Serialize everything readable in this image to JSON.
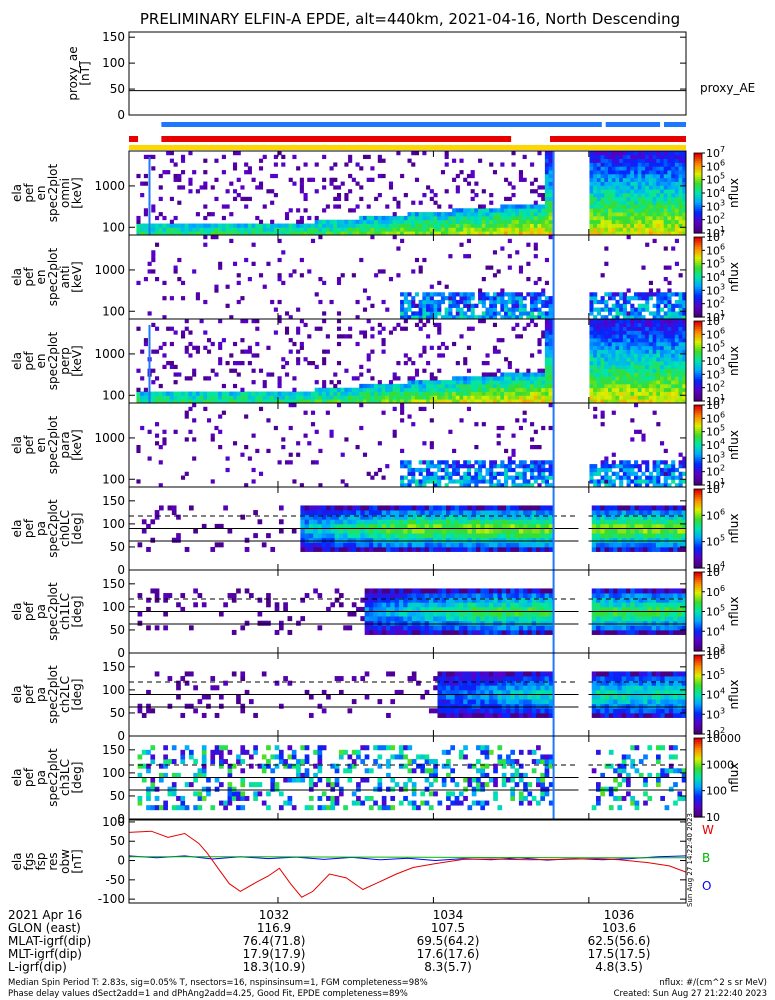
{
  "title": "PRELIMINARY ELFIN-A EPDE, alt=440km, 2021-04-16, North Descending",
  "colors": {
    "ae_line": "#000000",
    "bar_blue": "#1e78ff",
    "bar_red": "#e60000",
    "bar_yellow": "#ffd700",
    "fgs_red": "#e60000",
    "fgs_green": "#00b400",
    "fgs_blue": "#0000ff"
  },
  "chart_data": [
    {
      "id": "proxy_ae",
      "type": "line",
      "ylabel": [
        "proxy_ae",
        "[nT]"
      ],
      "ylim": [
        0,
        160
      ],
      "yticks": [
        "0",
        "50",
        "100",
        "150"
      ],
      "legend": "proxy_AE",
      "series": [
        {
          "name": "proxy_AE",
          "value": 47
        }
      ]
    },
    {
      "id": "status_bars",
      "type": "bar",
      "rows": [
        {
          "color": "blue",
          "segments": [
            [
              "10:30:30",
              "10:36:10"
            ],
            [
              "10:36:13",
              "10:36:55"
            ],
            [
              "10:36:58",
              "10:37:15"
            ]
          ]
        },
        {
          "color": "red",
          "segments": [
            [
              "10:30:05",
              "10:30:12"
            ],
            [
              "10:30:30",
              "10:35:00"
            ],
            [
              "10:35:30",
              "10:37:15"
            ]
          ]
        },
        {
          "color": "yellow",
          "segments": [
            [
              "10:30:05",
              "10:37:15"
            ]
          ]
        }
      ]
    },
    {
      "id": "ela_pef_en_spec2plot_omni",
      "type": "heatmap",
      "ylabel": [
        "ela",
        "pef",
        "en",
        "spec2plot",
        "omni",
        "[keV]"
      ],
      "yscale": "log",
      "ylim": [
        65,
        7000
      ],
      "yticks": [
        "100",
        "1000"
      ],
      "zlabel": "nflux",
      "zticks": [
        "10^1",
        "10^2",
        "10^3",
        "10^4",
        "10^5",
        "10^6",
        "10^7"
      ]
    },
    {
      "id": "ela_pef_en_spec2plot_anti",
      "type": "heatmap",
      "ylabel": [
        "ela",
        "pef",
        "en",
        "spec2plot",
        "anti",
        "[keV]"
      ],
      "yscale": "log",
      "ylim": [
        65,
        7000
      ],
      "yticks": [
        "100",
        "1000"
      ],
      "zlabel": "nflux",
      "zticks": [
        "10^1",
        "10^2",
        "10^3",
        "10^4",
        "10^5",
        "10^6",
        "10^7"
      ]
    },
    {
      "id": "ela_pef_en_spec2plot_perp",
      "type": "heatmap",
      "ylabel": [
        "ela",
        "pef",
        "en",
        "spec2plot",
        "perp",
        "[keV]"
      ],
      "yscale": "log",
      "ylim": [
        65,
        7000
      ],
      "yticks": [
        "100",
        "1000"
      ],
      "zlabel": "nflux",
      "zticks": [
        "10^1",
        "10^2",
        "10^3",
        "10^4",
        "10^5",
        "10^6",
        "10^7"
      ]
    },
    {
      "id": "ela_pef_en_spec2plot_para",
      "type": "heatmap",
      "ylabel": [
        "ela",
        "pef",
        "en",
        "spec2plot",
        "para",
        "[keV]"
      ],
      "yscale": "log",
      "ylim": [
        65,
        7000
      ],
      "yticks": [
        "100",
        "1000"
      ],
      "zlabel": "nflux",
      "zticks": [
        "10^1",
        "10^2",
        "10^3",
        "10^4",
        "10^5",
        "10^6",
        "10^7"
      ]
    },
    {
      "id": "ela_pef_pa_spec2plot_ch0LC",
      "type": "heatmap",
      "ylabel": [
        "ela",
        "pef",
        "pa",
        "spec2plot",
        "ch0LC",
        "[deg]"
      ],
      "ylim": [
        0,
        180
      ],
      "yticks": [
        "0",
        "50",
        "100",
        "150"
      ],
      "zlabel": "nflux",
      "zticks": [
        "10^4",
        "10^5",
        "10^6",
        "10^7"
      ]
    },
    {
      "id": "ela_pef_pa_spec2plot_ch1LC",
      "type": "heatmap",
      "ylabel": [
        "ela",
        "pef",
        "pa",
        "spec2plot",
        "ch1LC",
        "[deg]"
      ],
      "ylim": [
        0,
        180
      ],
      "yticks": [
        "0",
        "50",
        "100",
        "150"
      ],
      "zlabel": "nflux",
      "zticks": [
        "10^3",
        "10^4",
        "10^5",
        "10^6",
        "10^7"
      ]
    },
    {
      "id": "ela_pef_pa_spec2plot_ch2LC",
      "type": "heatmap",
      "ylabel": [
        "ela",
        "pef",
        "pa",
        "spec2plot",
        "ch2LC",
        "[deg]"
      ],
      "ylim": [
        0,
        180
      ],
      "yticks": [
        "0",
        "50",
        "100",
        "150"
      ],
      "zlabel": "nflux",
      "zticks": [
        "10^2",
        "10^3",
        "10^4",
        "10^5",
        "10^6"
      ]
    },
    {
      "id": "ela_pef_pa_spec2plot_ch3LC",
      "type": "heatmap",
      "ylabel": [
        "ela",
        "pef",
        "pa",
        "spec2plot",
        "ch3LC",
        "[deg]"
      ],
      "ylim": [
        0,
        180
      ],
      "yticks": [
        "0",
        "50",
        "100",
        "150"
      ],
      "zlabel": "nflux",
      "zticks": [
        "10",
        "100",
        "1000",
        "10000"
      ]
    },
    {
      "id": "ela_fgs_fsp_res_obw",
      "type": "line",
      "ylabel": [
        "ela",
        "fgs",
        "fsp",
        "res",
        "obw",
        "[nT]"
      ],
      "ylim": [
        -110,
        105
      ],
      "yticks": [
        "-100",
        "-50",
        "0",
        "50",
        "100"
      ],
      "side_note": "Sun Aug 27 14:22:40 2023",
      "series": [
        {
          "name": "W",
          "color": "red",
          "points": [
            [
              0,
              73
            ],
            [
              0.04,
              76
            ],
            [
              0.07,
              60
            ],
            [
              0.1,
              70
            ],
            [
              0.125,
              45
            ],
            [
              0.14,
              20
            ],
            [
              0.16,
              -20
            ],
            [
              0.18,
              -60
            ],
            [
              0.2,
              -80
            ],
            [
              0.23,
              -55
            ],
            [
              0.25,
              -40
            ],
            [
              0.27,
              -20
            ],
            [
              0.29,
              -60
            ],
            [
              0.31,
              -95
            ],
            [
              0.33,
              -80
            ],
            [
              0.36,
              -35
            ],
            [
              0.39,
              -45
            ],
            [
              0.42,
              -75
            ],
            [
              0.45,
              -55
            ],
            [
              0.48,
              -35
            ],
            [
              0.51,
              -18
            ],
            [
              0.55,
              -8
            ],
            [
              0.6,
              3
            ],
            [
              0.65,
              4
            ],
            [
              0.72,
              2
            ],
            [
              0.78,
              3
            ],
            [
              0.84,
              5
            ],
            [
              0.88,
              2
            ],
            [
              0.93,
              -5
            ],
            [
              0.97,
              -14
            ],
            [
              1,
              -30
            ]
          ]
        },
        {
          "name": "B",
          "color": "green",
          "points": [
            [
              0,
              10
            ],
            [
              0.2,
              10
            ],
            [
              0.4,
              9
            ],
            [
              0.6,
              8
            ],
            [
              0.8,
              7
            ],
            [
              1,
              7
            ]
          ]
        },
        {
          "name": "O",
          "color": "blue",
          "points": [
            [
              0,
              12
            ],
            [
              0.05,
              7
            ],
            [
              0.1,
              12
            ],
            [
              0.15,
              4
            ],
            [
              0.2,
              10
            ],
            [
              0.25,
              5
            ],
            [
              0.3,
              9
            ],
            [
              0.35,
              3
            ],
            [
              0.4,
              8
            ],
            [
              0.45,
              2
            ],
            [
              0.5,
              6
            ],
            [
              0.55,
              0
            ],
            [
              0.6,
              5
            ],
            [
              0.65,
              2
            ],
            [
              0.7,
              7
            ],
            [
              0.75,
              1
            ],
            [
              0.8,
              5
            ],
            [
              0.85,
              2
            ],
            [
              0.9,
              5
            ],
            [
              0.95,
              10
            ],
            [
              1,
              12
            ]
          ]
        }
      ]
    }
  ],
  "footer": {
    "rows": [
      {
        "label": "2021 Apr 16",
        "values": [
          "1032",
          "1034",
          "1036"
        ]
      },
      {
        "label": "GLON (east)",
        "values": [
          "116.9",
          "107.5",
          "103.6"
        ]
      },
      {
        "label": "MLAT-igrf(dip)",
        "values": [
          "76.4(71.8)",
          "69.5(64.2)",
          "62.5(56.6)"
        ]
      },
      {
        "label": "MLT-igrf(dip)",
        "values": [
          "17.9(17.9)",
          "17.6(17.6)",
          "17.5(17.5)"
        ]
      },
      {
        "label": "L-igrf(dip)",
        "values": [
          "18.3(10.9)",
          "8.3(5.7)",
          "4.8(3.5)"
        ]
      }
    ],
    "note_left_1": "Median Spin Period T: 2.83s, sig=0.05% T, nsectors=16, nspinsinsum=1, FGM completeness=98%",
    "note_left_2": "Phase delay values dSect2add=1 and dPhAng2add=4.25, Good Fit, EPDE completeness=89%",
    "note_right_1": "nflux: #/(cm^2 s sr MeV)",
    "note_right_2": "Created: Sun Aug 27 21:22:40 2023"
  }
}
